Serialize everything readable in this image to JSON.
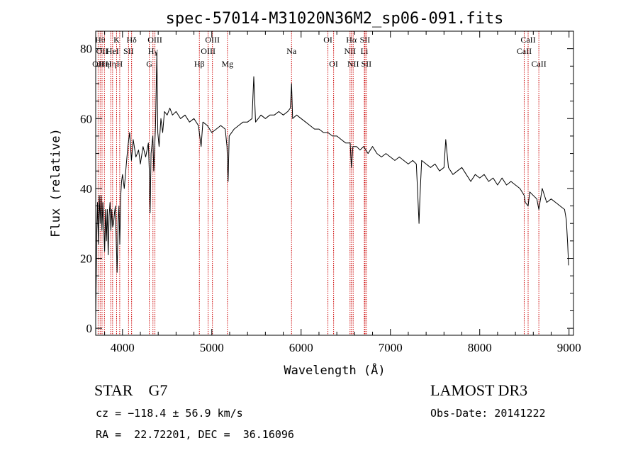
{
  "chart_data": {
    "type": "line",
    "title": "spec-57014-M31020N36M2_sp06-091.fits",
    "xlabel": "Wavelength (Å)",
    "ylabel": "Flux (relative)",
    "xlim": [
      3700,
      9050
    ],
    "ylim": [
      -2,
      85
    ],
    "x_ticks": [
      4000,
      5000,
      6000,
      7000,
      8000,
      9000
    ],
    "y_ticks": [
      0,
      20,
      40,
      60,
      80
    ],
    "grid": false,
    "series": [
      {
        "color": "#000000",
        "points": [
          [
            3700,
            3
          ],
          [
            3705,
            12
          ],
          [
            3712,
            28
          ],
          [
            3720,
            36
          ],
          [
            3730,
            24
          ],
          [
            3740,
            38
          ],
          [
            3750,
            30
          ],
          [
            3760,
            38
          ],
          [
            3770,
            28
          ],
          [
            3780,
            36
          ],
          [
            3790,
            30
          ],
          [
            3800,
            22
          ],
          [
            3810,
            34
          ],
          [
            3820,
            25
          ],
          [
            3830,
            34
          ],
          [
            3840,
            21
          ],
          [
            3850,
            32
          ],
          [
            3860,
            36
          ],
          [
            3870,
            28
          ],
          [
            3880,
            34
          ],
          [
            3890,
            29
          ],
          [
            3900,
            30
          ],
          [
            3910,
            33
          ],
          [
            3920,
            35
          ],
          [
            3930,
            25
          ],
          [
            3940,
            16
          ],
          [
            3950,
            30
          ],
          [
            3960,
            35
          ],
          [
            3970,
            24
          ],
          [
            3980,
            38
          ],
          [
            3990,
            42
          ],
          [
            4000,
            44
          ],
          [
            4020,
            40
          ],
          [
            4040,
            46
          ],
          [
            4060,
            52
          ],
          [
            4080,
            56
          ],
          [
            4100,
            48
          ],
          [
            4120,
            54
          ],
          [
            4150,
            49
          ],
          [
            4180,
            51
          ],
          [
            4200,
            47
          ],
          [
            4230,
            52
          ],
          [
            4260,
            49
          ],
          [
            4290,
            53
          ],
          [
            4300,
            45
          ],
          [
            4310,
            33
          ],
          [
            4320,
            50
          ],
          [
            4340,
            55
          ],
          [
            4350,
            45
          ],
          [
            4370,
            58
          ],
          [
            4385,
            79
          ],
          [
            4395,
            56
          ],
          [
            4410,
            52
          ],
          [
            4430,
            60
          ],
          [
            4450,
            56
          ],
          [
            4470,
            62
          ],
          [
            4500,
            61
          ],
          [
            4530,
            63
          ],
          [
            4560,
            61
          ],
          [
            4600,
            62
          ],
          [
            4650,
            60
          ],
          [
            4700,
            61
          ],
          [
            4750,
            59
          ],
          [
            4800,
            60
          ],
          [
            4850,
            58
          ],
          [
            4880,
            52
          ],
          [
            4900,
            59
          ],
          [
            4950,
            58
          ],
          [
            5000,
            56
          ],
          [
            5050,
            57
          ],
          [
            5100,
            58
          ],
          [
            5150,
            57
          ],
          [
            5170,
            52
          ],
          [
            5183,
            42
          ],
          [
            5195,
            55
          ],
          [
            5250,
            57
          ],
          [
            5300,
            58
          ],
          [
            5350,
            59
          ],
          [
            5400,
            59
          ],
          [
            5450,
            60
          ],
          [
            5470,
            72
          ],
          [
            5490,
            59
          ],
          [
            5550,
            61
          ],
          [
            5600,
            60
          ],
          [
            5650,
            61
          ],
          [
            5700,
            61
          ],
          [
            5750,
            62
          ],
          [
            5800,
            61
          ],
          [
            5850,
            62
          ],
          [
            5880,
            63
          ],
          [
            5893,
            70
          ],
          [
            5905,
            60
          ],
          [
            5950,
            61
          ],
          [
            6000,
            60
          ],
          [
            6050,
            59
          ],
          [
            6100,
            58
          ],
          [
            6150,
            57
          ],
          [
            6200,
            57
          ],
          [
            6250,
            56
          ],
          [
            6300,
            56
          ],
          [
            6350,
            55
          ],
          [
            6400,
            55
          ],
          [
            6450,
            54
          ],
          [
            6500,
            53
          ],
          [
            6550,
            53
          ],
          [
            6563,
            46
          ],
          [
            6580,
            52
          ],
          [
            6620,
            52
          ],
          [
            6660,
            51
          ],
          [
            6700,
            52
          ],
          [
            6750,
            50
          ],
          [
            6800,
            52
          ],
          [
            6850,
            50
          ],
          [
            6900,
            49
          ],
          [
            6950,
            50
          ],
          [
            7000,
            49
          ],
          [
            7050,
            48
          ],
          [
            7100,
            49
          ],
          [
            7150,
            48
          ],
          [
            7200,
            47
          ],
          [
            7250,
            48
          ],
          [
            7290,
            47
          ],
          [
            7310,
            36
          ],
          [
            7320,
            30
          ],
          [
            7330,
            37
          ],
          [
            7350,
            48
          ],
          [
            7400,
            47
          ],
          [
            7450,
            46
          ],
          [
            7500,
            47
          ],
          [
            7550,
            45
          ],
          [
            7600,
            46
          ],
          [
            7620,
            54
          ],
          [
            7650,
            46
          ],
          [
            7700,
            44
          ],
          [
            7750,
            45
          ],
          [
            7800,
            46
          ],
          [
            7850,
            44
          ],
          [
            7900,
            42
          ],
          [
            7950,
            44
          ],
          [
            8000,
            43
          ],
          [
            8050,
            44
          ],
          [
            8100,
            42
          ],
          [
            8150,
            43
          ],
          [
            8200,
            41
          ],
          [
            8250,
            43
          ],
          [
            8300,
            41
          ],
          [
            8350,
            42
          ],
          [
            8400,
            41
          ],
          [
            8450,
            40
          ],
          [
            8498,
            38
          ],
          [
            8510,
            36
          ],
          [
            8542,
            35
          ],
          [
            8560,
            39
          ],
          [
            8600,
            38
          ],
          [
            8640,
            37
          ],
          [
            8662,
            34
          ],
          [
            8700,
            40
          ],
          [
            8750,
            36
          ],
          [
            8800,
            37
          ],
          [
            8850,
            36
          ],
          [
            8900,
            35
          ],
          [
            8950,
            34
          ],
          [
            8970,
            31
          ],
          [
            8985,
            24
          ],
          [
            8995,
            18
          ]
        ]
      }
    ],
    "line_markers": [
      {
        "wavelength": 3727,
        "label": "OII",
        "row": 3
      },
      {
        "wavelength": 3750,
        "label": "Hθ",
        "row": 1
      },
      {
        "wavelength": 3771,
        "label": "OII",
        "row": 2
      },
      {
        "wavelength": 3798,
        "label": "Hη",
        "row": 3
      },
      {
        "wavelength": 3869,
        "label": "Hη",
        "row": 3
      },
      {
        "wavelength": 3889,
        "label": "HeI",
        "row": 2
      },
      {
        "wavelength": 3934,
        "label": "K",
        "row": 1
      },
      {
        "wavelength": 3969,
        "label": "H",
        "row": 3
      },
      {
        "wavelength": 4068,
        "label": "SII",
        "row": 2
      },
      {
        "wavelength": 4102,
        "label": "Hδ",
        "row": 1
      },
      {
        "wavelength": 4300,
        "label": "G",
        "row": 3
      },
      {
        "wavelength": 4341,
        "label": "Hγ",
        "row": 2
      },
      {
        "wavelength": 4363,
        "label": "OIII",
        "row": 1
      },
      {
        "wavelength": 4861,
        "label": "Hβ",
        "row": 3
      },
      {
        "wavelength": 4959,
        "label": "OIII",
        "row": 2
      },
      {
        "wavelength": 5007,
        "label": "OIII",
        "row": 1
      },
      {
        "wavelength": 5175,
        "label": "Mg",
        "row": 3
      },
      {
        "wavelength": 5893,
        "label": "Na",
        "row": 2
      },
      {
        "wavelength": 6300,
        "label": "OI",
        "row": 1
      },
      {
        "wavelength": 6364,
        "label": "OI",
        "row": 3
      },
      {
        "wavelength": 6548,
        "label": "NII",
        "row": 2
      },
      {
        "wavelength": 6563,
        "label": "Hα",
        "row": 1
      },
      {
        "wavelength": 6583,
        "label": "NII",
        "row": 3
      },
      {
        "wavelength": 6708,
        "label": "Li",
        "row": 2
      },
      {
        "wavelength": 6716,
        "label": "SII",
        "row": 1
      },
      {
        "wavelength": 6731,
        "label": "SII",
        "row": 3
      },
      {
        "wavelength": 8498,
        "label": "CaII",
        "row": 2
      },
      {
        "wavelength": 8542,
        "label": "CaII",
        "row": 1
      },
      {
        "wavelength": 8662,
        "label": "CaII",
        "row": 3
      }
    ]
  },
  "info": {
    "class_line": "STAR    G7",
    "survey": "LAMOST DR3",
    "redshift_line": "cz = −118.4 ± 56.9 km/s",
    "obs_date_line": "Obs-Date: 20141222",
    "coords_line": "RA =  22.72201, DEC =  36.16096"
  },
  "colors": {
    "spectrum": "#000000",
    "marker_line": "#cc0000",
    "text": "#000000"
  }
}
